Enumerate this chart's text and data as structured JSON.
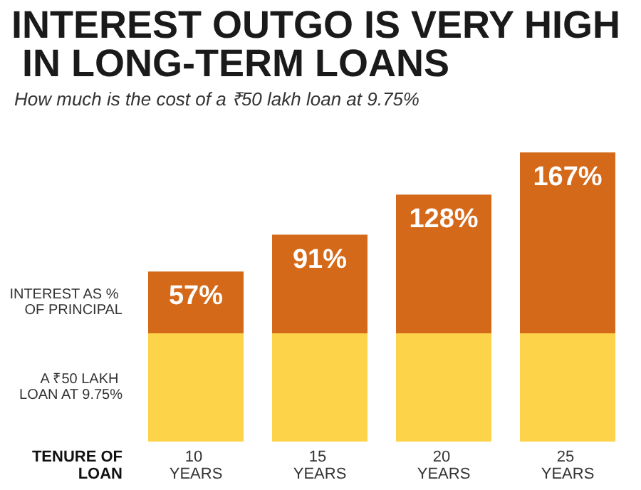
{
  "chart_data": {
    "type": "bar",
    "title": "INTEREST OUTGO IS VERY HIGH IN LONG-TERM LOANS",
    "subtitle": "How much is the cost of a ₹50 lakh loan at 9.75%",
    "xlabel": "TENURE OF LOAN",
    "categories": [
      "10 YEARS",
      "15 YEARS",
      "20 YEARS",
      "25 YEARS"
    ],
    "stacked": true,
    "legend": false,
    "series": [
      {
        "name": "A ₹50 LAKH LOAN AT 9.75%",
        "color": "#fdd34a",
        "values": [
          100,
          100,
          100,
          100
        ]
      },
      {
        "name": "INTEREST AS % OF PRINCIPAL",
        "color": "#d4691a",
        "values": [
          57,
          91,
          128,
          167
        ],
        "value_labels": [
          "57%",
          "91%",
          "128%",
          "167%"
        ]
      }
    ]
  }
}
